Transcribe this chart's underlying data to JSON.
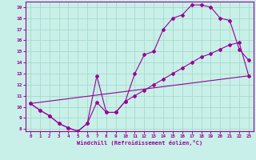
{
  "xlabel": "Windchill (Refroidissement éolien,°C)",
  "background_color": "#c8f0e8",
  "line_color": "#990099",
  "grid_color": "#aaddcc",
  "xlim": [
    -0.5,
    23.5
  ],
  "ylim": [
    7.8,
    19.5
  ],
  "xticks": [
    0,
    1,
    2,
    3,
    4,
    5,
    6,
    7,
    8,
    9,
    10,
    11,
    12,
    13,
    14,
    15,
    16,
    17,
    18,
    19,
    20,
    21,
    22,
    23
  ],
  "yticks": [
    8,
    9,
    10,
    11,
    12,
    13,
    14,
    15,
    16,
    17,
    18,
    19
  ],
  "curve1_x": [
    0,
    1,
    2,
    3,
    4,
    5,
    6,
    7,
    8,
    9,
    10,
    11,
    12,
    13,
    14,
    15,
    16,
    17,
    18,
    19,
    20,
    21,
    22,
    23
  ],
  "curve1_y": [
    10.3,
    9.7,
    9.2,
    8.5,
    8.1,
    7.8,
    8.5,
    12.8,
    9.5,
    9.5,
    10.5,
    13.0,
    14.7,
    15.0,
    17.0,
    18.0,
    18.3,
    19.2,
    19.2,
    19.0,
    18.0,
    17.8,
    15.2,
    14.2
  ],
  "curve2_x": [
    0,
    1,
    2,
    3,
    4,
    5,
    6,
    7,
    8,
    9,
    10,
    11,
    12,
    13,
    14,
    15,
    16,
    17,
    18,
    19,
    20,
    21,
    22,
    23
  ],
  "curve2_y": [
    10.3,
    9.7,
    9.2,
    8.5,
    8.1,
    7.8,
    8.5,
    10.4,
    9.5,
    9.5,
    10.5,
    11.0,
    11.5,
    12.0,
    12.5,
    13.0,
    13.5,
    14.0,
    14.5,
    14.8,
    15.2,
    15.6,
    15.8,
    12.8
  ],
  "curve3_x": [
    0,
    23
  ],
  "curve3_y": [
    10.3,
    12.8
  ]
}
